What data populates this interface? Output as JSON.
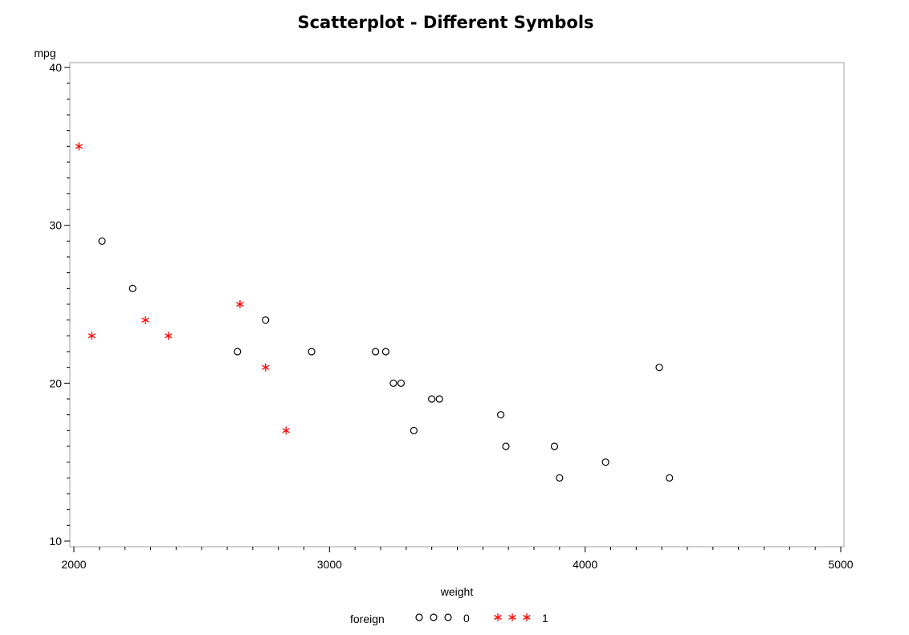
{
  "chart_data": {
    "type": "scatter",
    "title": "Scatterplot - Different Symbols",
    "xlabel": "weight",
    "ylabel": "mpg",
    "xlim": [
      2000,
      5000
    ],
    "ylim": [
      10,
      40
    ],
    "x_ticks": [
      2000,
      3000,
      4000,
      5000
    ],
    "y_ticks": [
      10,
      20,
      30,
      40
    ],
    "grid": false,
    "legend": {
      "title": "foreign",
      "placement": "bottom-center",
      "entries": [
        {
          "label": "0",
          "symbol": "circle",
          "color": "#000000"
        },
        {
          "label": "1",
          "symbol": "asterisk",
          "color": "#ff0000"
        }
      ]
    },
    "series": [
      {
        "name": "0",
        "symbol": "circle",
        "color": "#000000",
        "points": [
          [
            2110,
            29
          ],
          [
            2230,
            26
          ],
          [
            2640,
            22
          ],
          [
            2750,
            24
          ],
          [
            2930,
            22
          ],
          [
            3180,
            22
          ],
          [
            3220,
            22
          ],
          [
            3250,
            20
          ],
          [
            3280,
            20
          ],
          [
            3330,
            17
          ],
          [
            3400,
            19
          ],
          [
            3430,
            19
          ],
          [
            3670,
            18
          ],
          [
            3690,
            16
          ],
          [
            3880,
            16
          ],
          [
            3900,
            14
          ],
          [
            4080,
            15
          ],
          [
            4290,
            21
          ],
          [
            4330,
            14
          ]
        ]
      },
      {
        "name": "1",
        "symbol": "asterisk",
        "color": "#ff0000",
        "points": [
          [
            2020,
            35
          ],
          [
            2070,
            23
          ],
          [
            2280,
            24
          ],
          [
            2370,
            23
          ],
          [
            2650,
            25
          ],
          [
            2750,
            21
          ],
          [
            2830,
            17
          ]
        ]
      }
    ]
  }
}
